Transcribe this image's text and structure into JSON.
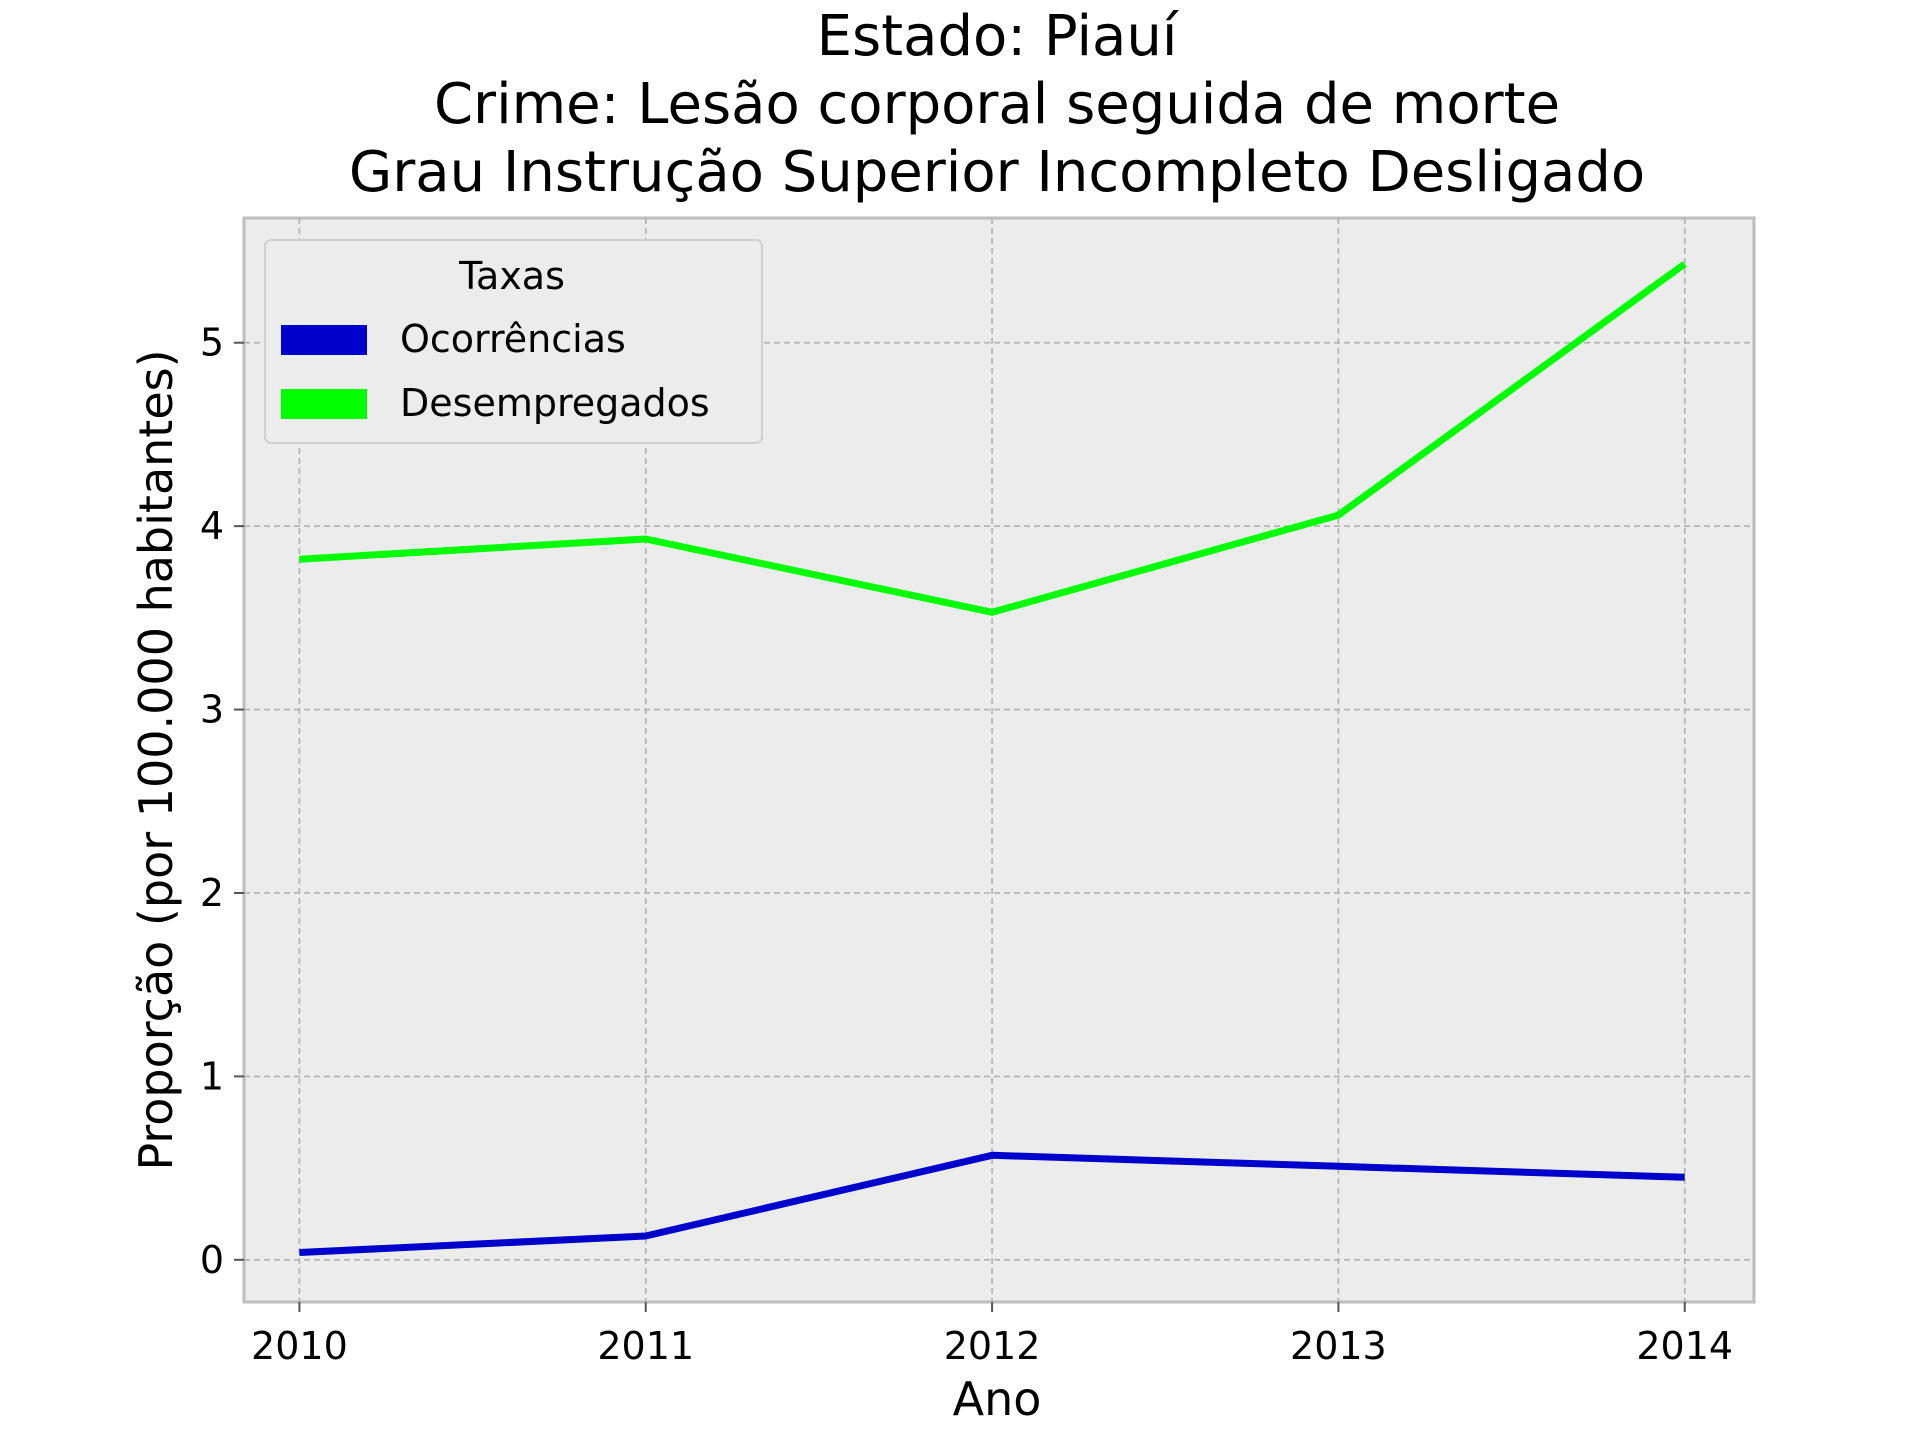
{
  "chart_data": {
    "type": "line",
    "title_lines": [
      "Estado: Piauí",
      "Crime: Lesão corporal seguida de morte",
      "Grau Instrução  Superior Incompleto   Desligado"
    ],
    "xlabel": "Ano",
    "ylabel": "Proporção (por 100.000 habitantes)",
    "x": [
      2010,
      2011,
      2012,
      2013,
      2014
    ],
    "x_tick_labels": [
      "2010",
      "2011",
      "2012",
      "2013",
      "2014"
    ],
    "y_ticks": [
      0,
      1,
      2,
      3,
      4,
      5
    ],
    "y_tick_labels": [
      "0",
      "1",
      "2",
      "3",
      "4",
      "5"
    ],
    "xlim": [
      2009.84,
      2014.2
    ],
    "ylim": [
      -0.23,
      5.68
    ],
    "grid": true,
    "legend": {
      "title": "Taxas",
      "placement": "top-left"
    },
    "series": [
      {
        "name": "Ocorrências",
        "color": "#0000cc",
        "values": [
          0.04,
          0.13,
          0.57,
          0.51,
          0.45
        ]
      },
      {
        "name": "Desempregados",
        "color": "#00ff00",
        "values": [
          3.82,
          3.93,
          3.53,
          4.06,
          5.43
        ]
      }
    ]
  }
}
